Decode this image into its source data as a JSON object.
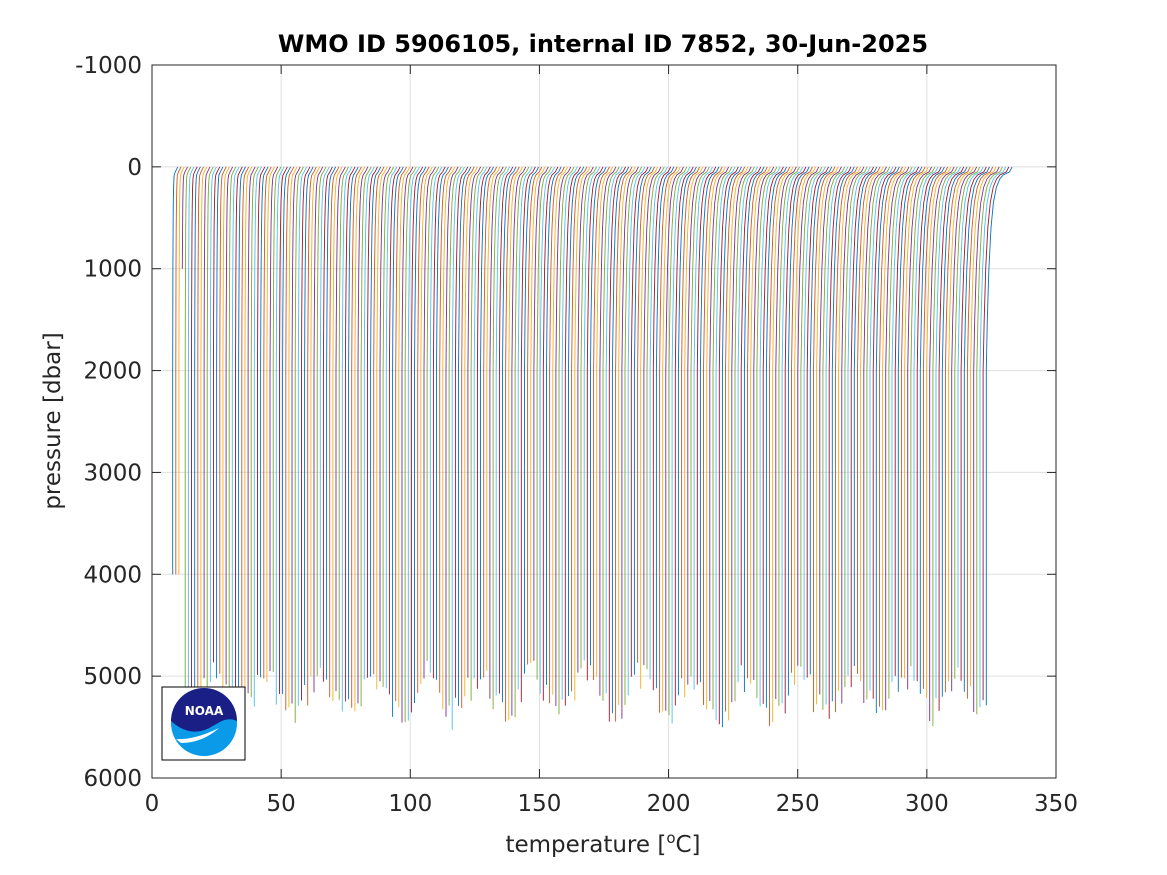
{
  "chart_data": {
    "type": "line",
    "title": "WMO ID 5906105, internal ID 7852, 30-Jun-2025",
    "xlabel": "temperature [",
    "xlabel_sup": "o",
    "xlabel_tail": "C]",
    "ylabel": "pressure [dbar]",
    "xlim": [
      0,
      350
    ],
    "ylim": [
      -1000,
      6000
    ],
    "y_reversed": true,
    "grid": true,
    "x_ticks": [
      0,
      50,
      100,
      150,
      200,
      250,
      300,
      350
    ],
    "x_tick_labels": [
      "0",
      "50",
      "100",
      "150",
      "200",
      "250",
      "300",
      "350"
    ],
    "y_ticks": [
      -1000,
      0,
      1000,
      2000,
      3000,
      4000,
      5000,
      6000
    ],
    "y_tick_labels": [
      "-1000",
      "0",
      "1000",
      "2000",
      "3000",
      "4000",
      "5000",
      "6000"
    ],
    "series_colors": [
      "#0072BD",
      "#D95319",
      "#EDB120",
      "#7E2F8E",
      "#77AC30",
      "#4DBEEE",
      "#A2142F"
    ],
    "series_description": "about 260 offset temperature profiles; each profile's surface temperature rises from about 10 to 333 C across the series, its deep value from about 8 to 323, and it ends between about 4000 and 5700 dbar",
    "profile_count": 260,
    "surface_temperature_range": [
      10,
      333
    ],
    "deep_temperature_range": [
      8,
      323
    ],
    "max_pressure_range": [
      4000,
      5700
    ]
  },
  "logo": {
    "text": "NOAA",
    "colors": {
      "navy": "#1a1f85",
      "sky": "#0a9ae8",
      "white": "#ffffff"
    }
  }
}
